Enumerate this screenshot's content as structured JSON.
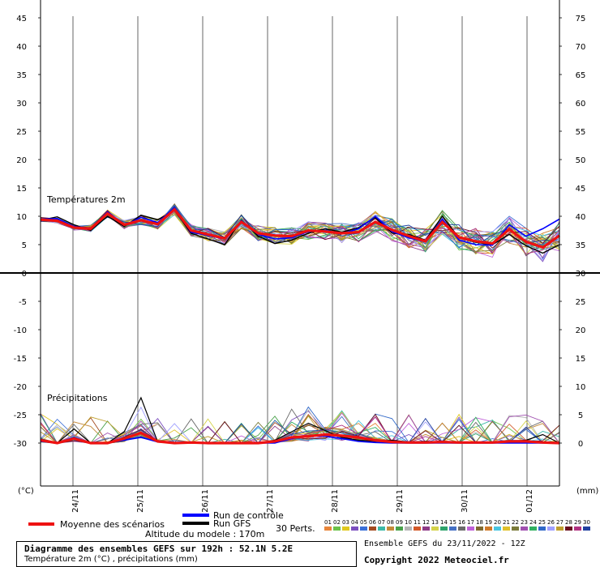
{
  "chart_data": {
    "type": "line",
    "title": "Diagramme des ensembles GEFS sur 192h : 52.1N 5.2E",
    "subtitle": "Température 2m (°C) , précipitations (mm)",
    "x_labels": [
      "24/11",
      "25/11",
      "26/11",
      "27/11",
      "28/11",
      "29/11",
      "30/11",
      "01/12"
    ],
    "left_axis": {
      "unit": "(°C)",
      "ticks": [
        45,
        40,
        35,
        30,
        25,
        20,
        15,
        10,
        5,
        0,
        -5,
        -10,
        -15,
        -20,
        -25,
        -30
      ]
    },
    "right_axis": {
      "unit": "(mm)",
      "ticks": [
        75,
        70,
        65,
        60,
        55,
        50,
        45,
        40,
        35,
        30,
        25,
        20,
        15,
        10,
        5,
        0
      ]
    },
    "panel_labels": {
      "temperature": "Températures 2m",
      "precip": "Précipitations"
    },
    "temperature": {
      "mean": [
        9.4,
        9.2,
        8.0,
        7.8,
        10.5,
        8.5,
        9.3,
        8.6,
        11.2,
        7.5,
        6.8,
        6.1,
        9.0,
        7.0,
        6.6,
        6.5,
        7.5,
        7.3,
        7.0,
        7.2,
        9.0,
        7.6,
        6.5,
        5.6,
        9.0,
        6.3,
        5.6,
        5.2,
        7.7,
        5.5,
        4.5,
        6.6
      ],
      "control": [
        9.5,
        9.6,
        8.2,
        7.8,
        10.8,
        8.4,
        9.8,
        8.9,
        11.5,
        7.2,
        6.6,
        6.0,
        9.2,
        6.8,
        6.0,
        6.2,
        7.3,
        7.5,
        6.9,
        7.8,
        10.0,
        7.3,
        6.2,
        5.5,
        9.5,
        5.8,
        5.0,
        4.9,
        8.5,
        6.5,
        7.8,
        9.5
      ],
      "gfs": [
        9.3,
        9.9,
        8.5,
        7.5,
        10.0,
        8.2,
        10.2,
        9.4,
        11.0,
        7.0,
        6.0,
        5.0,
        9.3,
        6.5,
        5.2,
        5.8,
        7.0,
        7.8,
        7.2,
        8.0,
        9.8,
        7.0,
        6.8,
        5.8,
        10.0,
        6.2,
        5.4,
        5.0,
        6.8,
        4.8,
        3.5,
        5.0
      ]
    },
    "precip": {
      "mean": [
        0.5,
        0.0,
        0.8,
        0.0,
        0.0,
        0.8,
        1.8,
        0.3,
        0.0,
        0.1,
        0.0,
        0.0,
        0.0,
        0.0,
        0.3,
        1.0,
        1.2,
        1.5,
        1.3,
        1.0,
        0.5,
        0.2,
        0.1,
        0.1,
        0.2,
        0.1,
        0.1,
        0.1,
        0.3,
        0.3,
        0.1,
        0.0
      ],
      "control": [
        0.3,
        0.0,
        1.0,
        0.0,
        0.0,
        0.5,
        1.0,
        0.2,
        0.0,
        0.0,
        0.0,
        0.0,
        0.0,
        0.0,
        0.0,
        0.8,
        1.3,
        1.2,
        0.8,
        0.3,
        0.1,
        0.0,
        0.0,
        0.0,
        0.0,
        0.0,
        0.0,
        0.0,
        0.0,
        0.0,
        0.0,
        0.0
      ],
      "gfs": [
        0.5,
        0.0,
        2.5,
        0.0,
        0.0,
        2.0,
        8.0,
        0.2,
        0.0,
        0.0,
        0.0,
        0.0,
        0.0,
        0.0,
        0.5,
        2.0,
        3.5,
        2.2,
        1.0,
        0.5,
        0.3,
        0.5,
        0.2,
        0.3,
        0.2,
        0.1,
        0.1,
        0.1,
        0.3,
        0.5,
        1.5,
        0.0
      ]
    },
    "member_count": 30
  },
  "legend": {
    "mean_label": "Moyenne des scénarios",
    "control_label": "Run de contrôle",
    "gfs_label": "Run GFS",
    "altitude_label": "Altitude du modele : 170m",
    "perts_label": "30 Perts.",
    "member_numbers": [
      "01",
      "02",
      "03",
      "04",
      "05",
      "06",
      "07",
      "08",
      "09",
      "10",
      "11",
      "12",
      "13",
      "14",
      "15",
      "16",
      "17",
      "18",
      "19",
      "20",
      "21",
      "22",
      "23",
      "24",
      "25",
      "26",
      "27",
      "28",
      "29",
      "30"
    ],
    "member_colors": [
      "#e8853a",
      "#6cc24a",
      "#e0c81e",
      "#7c4fbf",
      "#3a6fd8",
      "#a34a1f",
      "#3cb9a7",
      "#c48a3a",
      "#49a14a",
      "#b5b5b5",
      "#d45a2a",
      "#8e3a86",
      "#d4d24a",
      "#2ea36c",
      "#4470c4",
      "#6a6a6a",
      "#c060d8",
      "#806a30",
      "#d07a2a",
      "#48c4e0",
      "#e0c02a",
      "#7a7a3a",
      "#a050b0",
      "#30b060",
      "#3068c8",
      "#a0a0ff",
      "#c0a030",
      "#6a1020",
      "#b03080",
      "#2040a0"
    ]
  },
  "footer": {
    "ensemble_label": "Ensemble GEFS du 23/11/2022 - 12Z",
    "copyright": "Copyright 2022 Meteociel.fr"
  }
}
